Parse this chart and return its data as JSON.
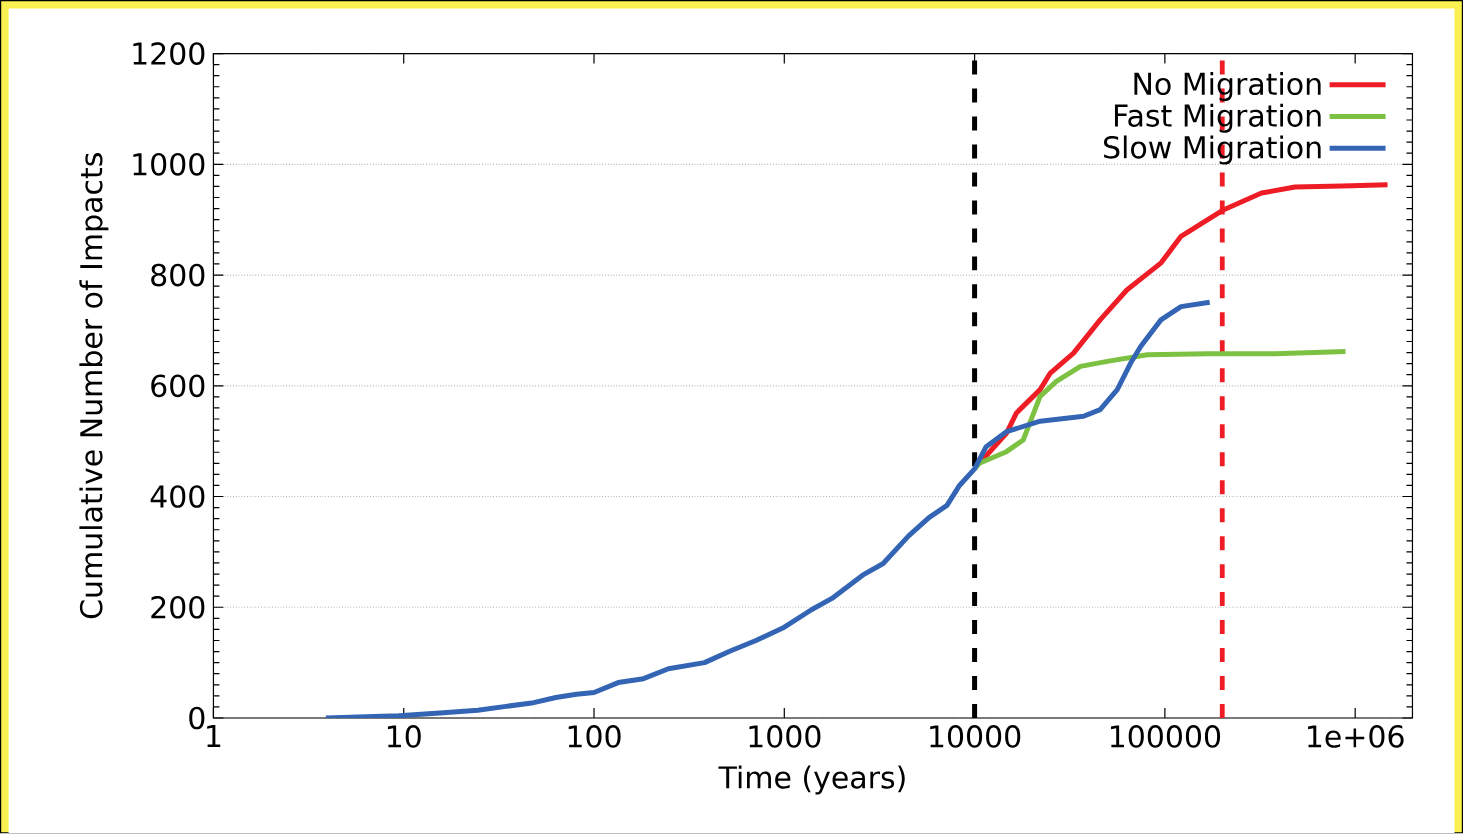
{
  "chart_data": {
    "type": "line",
    "xlabel": "Time (years)",
    "ylabel": "Cumulative Number of Impacts",
    "log": "x",
    "grid": "y",
    "legend": "top right",
    "marker": "none",
    "line_style": "solid",
    "xlim": [
      1,
      2000000
    ],
    "ylim": [
      0,
      1200
    ],
    "xticks": [
      1,
      10,
      100,
      1000,
      10000,
      100000,
      {
        "value": 1000000,
        "label": "1e+06"
      }
    ],
    "yticks": [
      0,
      200,
      400,
      600,
      800,
      1000,
      1200
    ],
    "ref_lines": [
      {
        "axis": "x",
        "value": 10000,
        "color": "#000000",
        "line_style": "dashed"
      },
      {
        "axis": "x",
        "value": 200000,
        "color": "#ee1c25",
        "line_style": "dashed"
      }
    ],
    "series": [
      {
        "name": "No Migration",
        "color": "#ee1c25",
        "x": [
          10600,
          14700,
          16600,
          22100,
          25000,
          33100,
          45700,
          63100,
          95500,
          121600,
          168000,
          204000,
          322000,
          483000,
          851000,
          1480000
        ],
        "values": [
          460,
          514,
          551,
          593,
          623,
          659,
          719,
          773,
          822,
          870,
          900,
          918,
          948,
          959,
          961,
          963
        ]
      },
      {
        "name": "Fast Migration",
        "color": "#7dc142",
        "x": [
          10000,
          10600,
          14700,
          18000,
          22100,
          26900,
          36000,
          49800,
          80900,
          168000,
          380000,
          890000
        ],
        "values": [
          450,
          460,
          481,
          502,
          581,
          608,
          635,
          644,
          656,
          658,
          658,
          662
        ]
      },
      {
        "name": "Slow Migration",
        "color": "#3465b4",
        "x": [
          3.9,
          9.4,
          15.5,
          24.5,
          34.5,
          47,
          63,
          81,
          100,
          134,
          182,
          246,
          381,
          520,
          710,
          1000,
          1396,
          1780,
          2580,
          3310,
          4500,
          5760,
          7160,
          8330,
          10000,
          11500,
          14700,
          22100,
          37400,
          45700,
          56200,
          66100,
          74600,
          95300,
          121600,
          172000
        ],
        "values": [
          0,
          4,
          9,
          14,
          21,
          27,
          37,
          43,
          46,
          64,
          71,
          89,
          100,
          121,
          140,
          164,
          196,
          216,
          258,
          279,
          329,
          362,
          384,
          420,
          450,
          490,
          517,
          536,
          545,
          557,
          593,
          641,
          671,
          719,
          743,
          751
        ]
      }
    ]
  }
}
